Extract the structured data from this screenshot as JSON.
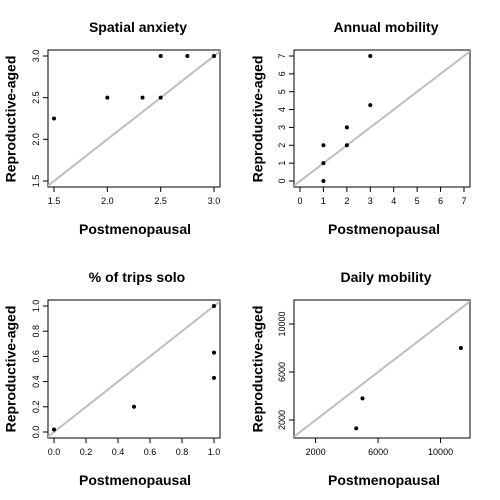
{
  "chart_data": [
    {
      "type": "scatter",
      "title": "Spatial anxiety",
      "xlabel": "Postmenopausal",
      "ylabel": "Reproductive-aged",
      "xlim": [
        1.5,
        3.0
      ],
      "ylim": [
        1.5,
        3.0
      ],
      "xticks": [
        1.5,
        2.0,
        2.5,
        3.0
      ],
      "xtick_labels": [
        "1.5",
        "2.0",
        "2.5",
        "3.0"
      ],
      "yticks": [
        1.5,
        2.0,
        2.5,
        3.0
      ],
      "ytick_labels": [
        "1.5",
        "2.0",
        "2.5",
        "3.0"
      ],
      "reference_line": "y = x",
      "points": [
        {
          "x": 1.5,
          "y": 2.25
        },
        {
          "x": 2.0,
          "y": 2.5
        },
        {
          "x": 2.33,
          "y": 2.5
        },
        {
          "x": 2.5,
          "y": 2.5
        },
        {
          "x": 2.5,
          "y": 3.0
        },
        {
          "x": 2.75,
          "y": 3.0
        },
        {
          "x": 3.0,
          "y": 3.0
        }
      ]
    },
    {
      "type": "scatter",
      "title": "Annual mobility",
      "xlabel": "Postmenopausal",
      "ylabel": "Reproductive-aged",
      "xlim": [
        0,
        7
      ],
      "ylim": [
        0,
        7
      ],
      "xticks": [
        0,
        1,
        2,
        3,
        4,
        5,
        6,
        7
      ],
      "xtick_labels": [
        "0",
        "1",
        "2",
        "3",
        "4",
        "5",
        "6",
        "7"
      ],
      "yticks": [
        0,
        1,
        2,
        3,
        4,
        5,
        6,
        7
      ],
      "ytick_labels": [
        "0",
        "1",
        "2",
        "3",
        "4",
        "5",
        "6",
        "7"
      ],
      "reference_line": "y = x",
      "points": [
        {
          "x": 1,
          "y": 0
        },
        {
          "x": 1,
          "y": 1
        },
        {
          "x": 1,
          "y": 2
        },
        {
          "x": 2,
          "y": 2
        },
        {
          "x": 2,
          "y": 3
        },
        {
          "x": 3,
          "y": 4.25
        },
        {
          "x": 3,
          "y": 7
        }
      ]
    },
    {
      "type": "scatter",
      "title": "% of trips solo",
      "xlabel": "Postmenopausal",
      "ylabel": "Reproductive-aged",
      "xlim": [
        0,
        1
      ],
      "ylim": [
        0,
        1
      ],
      "xticks": [
        0,
        0.2,
        0.4,
        0.6,
        0.8,
        1.0
      ],
      "xtick_labels": [
        "0.0",
        "0.2",
        "0.4",
        "0.6",
        "0.8",
        "1.0"
      ],
      "yticks": [
        0,
        0.2,
        0.4,
        0.6,
        0.8,
        1.0
      ],
      "ytick_labels": [
        "0.0",
        "0.2",
        "0.4",
        "0.6",
        "0.8",
        "1.0"
      ],
      "reference_line": "y = x",
      "points": [
        {
          "x": 0.0,
          "y": 0.02
        },
        {
          "x": 0.5,
          "y": 0.2
        },
        {
          "x": 1.0,
          "y": 0.43
        },
        {
          "x": 1.0,
          "y": 0.63
        },
        {
          "x": 1.0,
          "y": 1.0
        }
      ]
    },
    {
      "type": "scatter",
      "title": "Daily mobility",
      "xlabel": "Postmenopausal",
      "ylabel": "Reproductive-aged",
      "xlim": [
        1000,
        11500
      ],
      "ylim": [
        1000,
        11500
      ],
      "xticks": [
        2000,
        6000,
        10000
      ],
      "xtick_labels": [
        "2000",
        "6000",
        "10000"
      ],
      "yticks": [
        2000,
        6000,
        10000
      ],
      "ytick_labels": [
        "2000",
        "6000",
        "10000"
      ],
      "reference_line": "y = x",
      "points": [
        {
          "x": 4600,
          "y": 1300
        },
        {
          "x": 5000,
          "y": 3800
        },
        {
          "x": 11300,
          "y": 8000
        }
      ]
    }
  ]
}
